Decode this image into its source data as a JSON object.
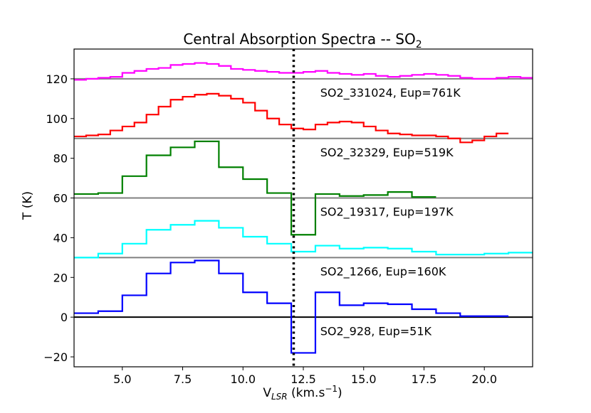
{
  "chart_data": {
    "type": "line",
    "step": true,
    "title": "Central Absorption Spectra -- SO",
    "title_subscript": "2",
    "xlabel_main": "V",
    "xlabel_sub": "LSR",
    "xlabel_units": " (km.s",
    "xlabel_sup": "−1",
    "xlabel_close": ")",
    "ylabel": "T (K)",
    "xlim": [
      3.0,
      22.0
    ],
    "ylim": [
      -25,
      135
    ],
    "xticks": [
      5.0,
      7.5,
      10.0,
      12.5,
      15.0,
      17.5,
      20.0
    ],
    "xtick_labels": [
      "5.0",
      "7.5",
      "10.0",
      "12.5",
      "15.0",
      "17.5",
      "20.0"
    ],
    "yticks": [
      -20,
      0,
      20,
      40,
      60,
      80,
      100,
      120
    ],
    "ytick_labels": [
      "−20",
      "0",
      "20",
      "40",
      "60",
      "80",
      "100",
      "120"
    ],
    "vline": {
      "x": 12.1,
      "style": "dotted",
      "color": "#000000"
    },
    "series": [
      {
        "name": "SO2_928, Eup=51K",
        "color": "#0000ff",
        "baseline": 0,
        "baseline_color": "#000000",
        "x": [
          3,
          4,
          5,
          6,
          7,
          8,
          9,
          10,
          11,
          12,
          13,
          14,
          15,
          16,
          17,
          18,
          19,
          20
        ],
        "y": [
          2,
          3,
          11,
          22,
          27.5,
          28.5,
          22,
          12.5,
          7,
          -18,
          12.5,
          6,
          7,
          6.5,
          4,
          2,
          0.5,
          0.5
        ],
        "x_end": 21
      },
      {
        "name": "SO2_1266, Eup=160K",
        "color": "#00ffff",
        "baseline": 30,
        "baseline_color": "#808080",
        "x": [
          3,
          4,
          5,
          6,
          7,
          8,
          9,
          10,
          11,
          12,
          13,
          14,
          15,
          16,
          17,
          18,
          19,
          20,
          21
        ],
        "y": [
          30,
          32,
          37,
          44,
          46.5,
          48.5,
          45,
          40.5,
          37,
          33,
          36,
          34.5,
          35,
          34.5,
          33,
          31.5,
          31.5,
          32,
          32.5
        ],
        "x_end": 22
      },
      {
        "name": "SO2_19317, Eup=197K",
        "color": "#008000",
        "baseline": 60,
        "baseline_color": "#808080",
        "x": [
          3,
          4,
          5,
          6,
          7,
          8,
          9,
          10,
          11,
          12,
          13,
          14,
          15,
          16,
          17
        ],
        "y": [
          62,
          62.5,
          71,
          81.5,
          85.5,
          88.5,
          75.5,
          69.5,
          62.5,
          41.5,
          62,
          61,
          61.5,
          63,
          60.5
        ],
        "x_end": 18
      },
      {
        "name": "SO2_32329, Eup=519K",
        "color": "#ff0000",
        "baseline": 90,
        "baseline_color": "#808080",
        "x": [
          3,
          3.5,
          4,
          4.5,
          5,
          5.5,
          6,
          6.5,
          7,
          7.5,
          8,
          8.5,
          9,
          9.5,
          10,
          10.5,
          11,
          11.5,
          12,
          12.5,
          13,
          13.5,
          14,
          14.5,
          15,
          15.5,
          16,
          16.5,
          17,
          17.5,
          18,
          18.5,
          19,
          19.5,
          20,
          20.5
        ],
        "y": [
          91,
          91.5,
          92,
          94,
          96,
          98,
          102,
          106,
          109.5,
          111,
          112,
          112.5,
          111.5,
          110,
          108,
          104,
          100,
          97,
          95,
          94.5,
          97,
          98,
          98.5,
          98,
          96,
          94,
          92.5,
          92,
          91.5,
          91.5,
          91,
          90,
          88,
          89,
          91,
          92.5
        ],
        "x_end": 21
      },
      {
        "name": "SO2_331024, Eup=761K",
        "color": "#ff00ff",
        "baseline": 120,
        "baseline_color": "#808080",
        "x": [
          3,
          3.5,
          4,
          4.5,
          5,
          5.5,
          6,
          6.5,
          7,
          7.5,
          8,
          8.5,
          9,
          9.5,
          10,
          10.5,
          11,
          11.5,
          12,
          12.5,
          13,
          13.5,
          14,
          14.5,
          15,
          15.5,
          16,
          16.5,
          17,
          17.5,
          18,
          18.5,
          19,
          19.5,
          20,
          20.5,
          21,
          21.5
        ],
        "y": [
          119.5,
          120,
          120.5,
          121,
          123,
          124,
          125,
          125.5,
          127,
          127.5,
          128,
          127.5,
          126.5,
          125,
          124.5,
          124,
          123.5,
          123,
          123,
          123.5,
          124,
          123,
          122.5,
          122,
          122.5,
          121.5,
          121,
          121.5,
          122,
          122.5,
          122,
          121.5,
          120.5,
          120,
          120,
          120.5,
          121,
          120.5
        ],
        "x_end": 22
      }
    ],
    "annotations": [
      {
        "text": "SO2_331024, Eup=761K",
        "x": 13.2,
        "y": 111
      },
      {
        "text": "SO2_32329, Eup=519K",
        "x": 13.2,
        "y": 81
      },
      {
        "text": "SO2_19317, Eup=197K",
        "x": 13.2,
        "y": 51
      },
      {
        "text": "SO2_1266, Eup=160K",
        "x": 13.2,
        "y": 21
      },
      {
        "text": "SO2_928, Eup=51K",
        "x": 13.2,
        "y": -9
      }
    ]
  }
}
